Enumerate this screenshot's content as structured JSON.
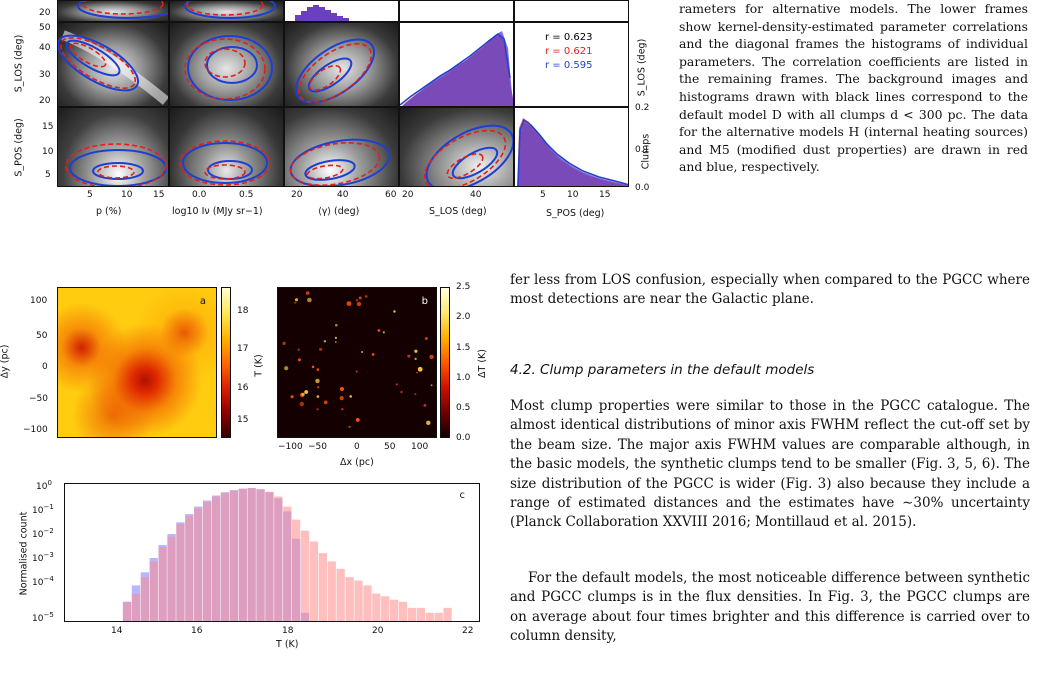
{
  "figure_top": {
    "ylabels": {
      "row2": "S_LOS (deg)",
      "row3": "S_POS (deg)"
    },
    "row_ticks": {
      "row1": [
        "20"
      ],
      "row2": [
        "50",
        "40",
        "30",
        "20"
      ],
      "row3": [
        "15",
        "10",
        "5"
      ]
    },
    "xlabels": [
      "p (%)",
      "log10 Iν (MJy sr−1)",
      "⟨γ⟩ (deg)",
      "S_LOS (deg)",
      "S_POS (deg)"
    ],
    "xticks": {
      "p": [
        "5",
        "10",
        "15"
      ],
      "logI": [
        "0.0",
        "0.5"
      ],
      "gamma": [
        "20",
        "40",
        "60"
      ],
      "slos": [
        "20",
        "40"
      ],
      "spos": [
        "5",
        "10",
        "15"
      ]
    },
    "right_axis": {
      "label_slos": "S_LOS (deg)",
      "label_clumps": "Clumps",
      "ticks": [
        "0.2",
        "0.1",
        "0.0"
      ]
    },
    "correlations": [
      {
        "text": "r = 0.623",
        "color": "#000000"
      },
      {
        "text": "r = 0.621",
        "color": "#e0201b"
      },
      {
        "text": "r = 0.595",
        "color": "#1f3fd0"
      }
    ]
  },
  "caption": {
    "text": "rameters for alternative models. The lower frames show kernel-density-estimated parameter correlations and the diagonal frames the histograms of individual parameters. The correlation coefficients are listed in the remaining frames. The background images and histograms drawn with black lines correspond to the default model D with all clumps d < 300 pc. The data for the alternative models H (internal heating sources) and M5 (modified dust properties) are drawn in red and blue, respectively."
  },
  "fig_bottom": {
    "panel_a": {
      "tag": "a",
      "ylabel": "Δy (pc)",
      "yticks": [
        "100",
        "50",
        "0",
        "−50",
        "−100"
      ],
      "cbar_label": "T (K)",
      "cbar_ticks": [
        "18",
        "17",
        "16",
        "15"
      ]
    },
    "panel_b": {
      "tag": "b",
      "xlabel": "Δx (pc)",
      "xticks": [
        "−100",
        "−50",
        "0",
        "50",
        "100"
      ],
      "cbar_label": "ΔT (K)",
      "cbar_ticks": [
        "2.5",
        "2.0",
        "1.5",
        "1.0",
        "0.5",
        "0.0"
      ]
    },
    "panel_c": {
      "tag": "c",
      "ylabel": "Normalised count",
      "xlabel": "T (K)",
      "xticks": [
        "14",
        "16",
        "18",
        "20",
        "22"
      ],
      "yticks": [
        "10^0",
        "10^−1",
        "10^−2",
        "10^−3",
        "10^−4",
        "10^−5"
      ]
    }
  },
  "chart_data": {
    "type": "bar",
    "xlabel": "T (K)",
    "ylabel": "Normalised count",
    "yscale": "log",
    "ylim": [
      1e-05,
      1
    ],
    "xlim": [
      13.2,
      22.5
    ],
    "series": [
      {
        "name": "",
        "color": "#7b7bff",
        "x": [
          14.4,
          14.6,
          14.8,
          15.0,
          15.2,
          15.4,
          15.6,
          15.8,
          16.0,
          16.2,
          16.4,
          16.6,
          16.8,
          17.0,
          17.2,
          17.4,
          17.6,
          17.8,
          18.0,
          18.2,
          18.4,
          18.6
        ],
        "values": [
          1e-05,
          5e-05,
          0.0002,
          0.0006,
          0.002,
          0.006,
          0.015,
          0.04,
          0.08,
          0.15,
          0.25,
          0.38,
          0.5,
          0.6,
          0.68,
          0.72,
          0.65,
          0.5,
          0.3,
          0.1,
          0.01,
          2e-05
        ]
      },
      {
        "name": "",
        "color": "#ff8a8a",
        "x": [
          14.6,
          14.8,
          15.0,
          15.2,
          15.4,
          15.6,
          15.8,
          16.0,
          16.2,
          16.4,
          16.6,
          16.8,
          17.0,
          17.2,
          17.4,
          17.6,
          17.8,
          18.0,
          18.2,
          18.4,
          18.6,
          18.8,
          19.0,
          19.2,
          19.4,
          19.6,
          19.8,
          20.0,
          20.2,
          20.4,
          20.6,
          20.8,
          21.0,
          21.2,
          21.4,
          21.6,
          21.8
        ],
        "values": [
          5e-05,
          0.0001,
          0.0004,
          0.0015,
          0.005,
          0.012,
          0.035,
          0.07,
          0.13,
          0.22,
          0.35,
          0.47,
          0.58,
          0.66,
          0.7,
          0.63,
          0.52,
          0.35,
          0.15,
          0.05,
          0.02,
          0.008,
          0.003,
          0.0015,
          0.0008,
          0.0004,
          0.0003,
          0.0002,
          0.0001,
          8e-05,
          6e-05,
          5e-05,
          3e-05,
          3e-05,
          2e-05,
          2e-05,
          3e-05
        ]
      }
    ]
  },
  "body": {
    "para1": "fer less from LOS confusion, especially when compared to the PGCC where most detections are near the Galactic plane.",
    "section": "4.2. Clump parameters in the default models",
    "para2": "Most clump properties were similar to those in the PGCC catalogue. The almost identical distributions of minor axis FWHM reflect the cut-off set by the beam size. The major axis FWHM values are comparable although, in the basic models, the synthetic clumps tend to be smaller (Fig. 3, 5, 6). The size distribution of the PGCC is wider (Fig. 3) also because they include a range of estimated distances and the estimates have ∼30% uncertainty (Planck Collaboration XXVIII 2016; Montillaud et al. 2015).",
    "para3": "For the default models, the most noticeable difference between synthetic and PGCC clumps is in the flux densities. In Fig. 3, the PGCC clumps are on average about four times brighter and this difference is carried over to column density,"
  }
}
